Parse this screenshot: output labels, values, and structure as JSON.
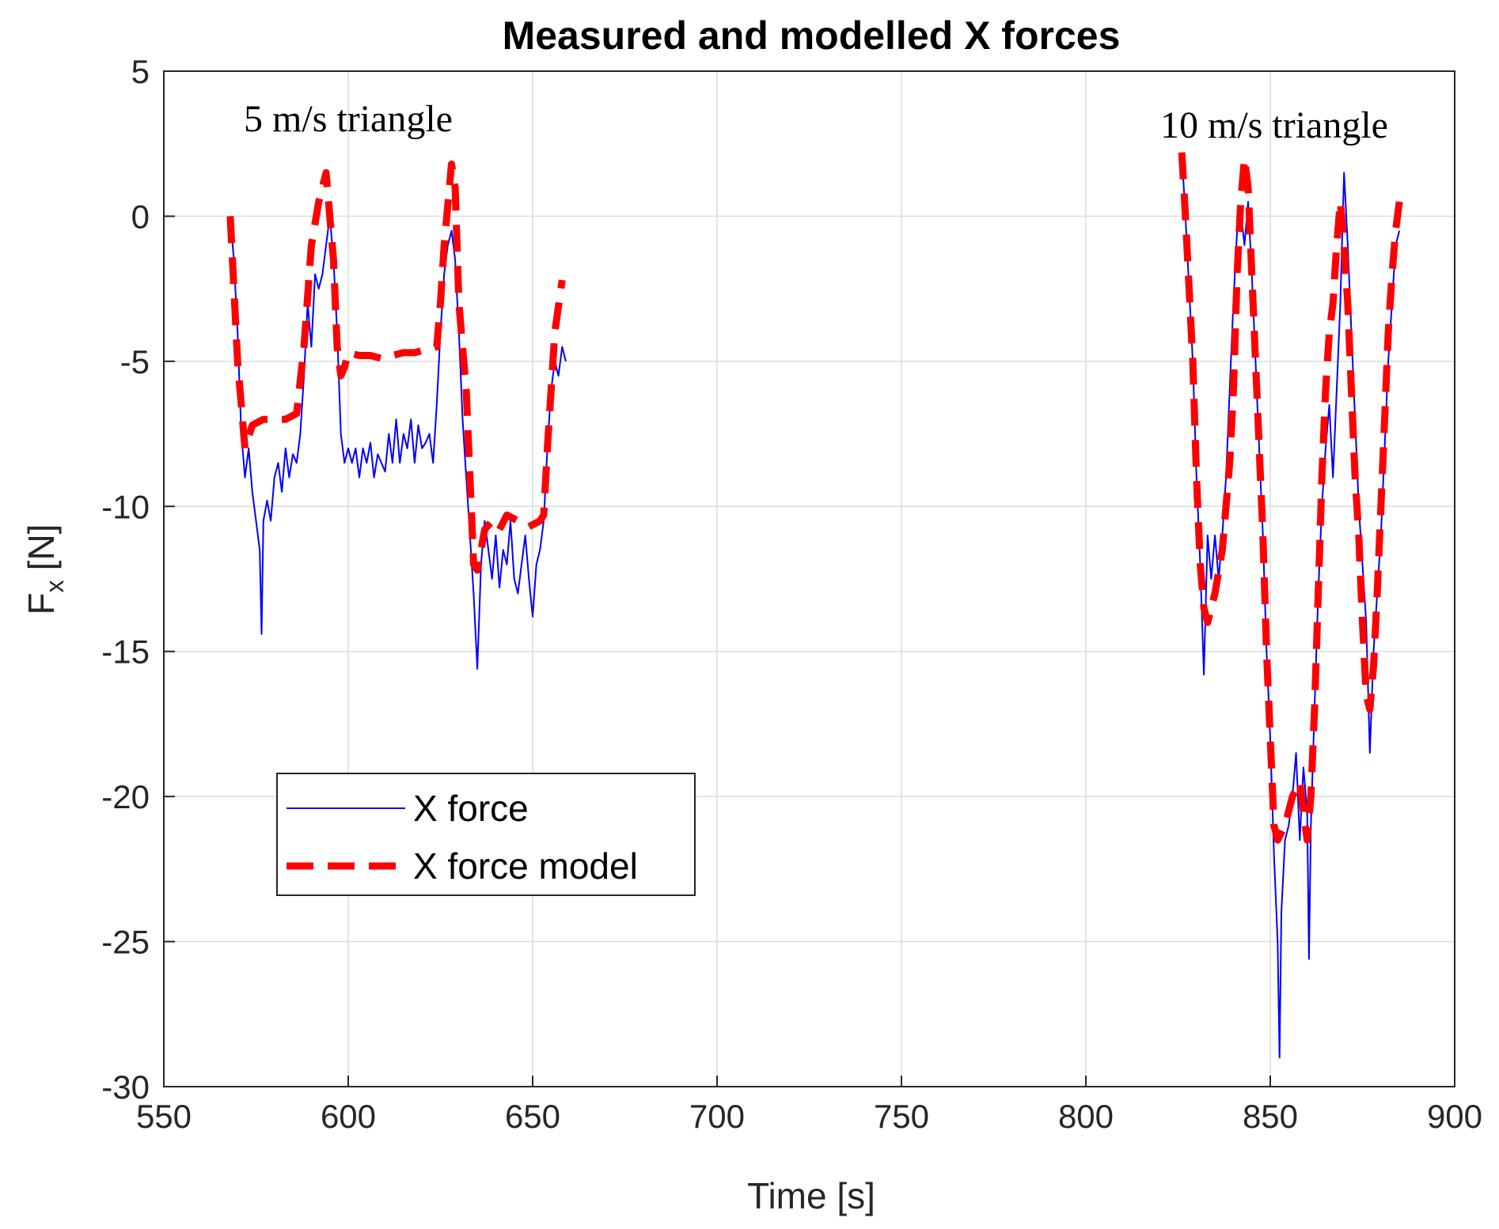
{
  "chart_data": {
    "type": "line",
    "title": "Measured and modelled X forces",
    "xlabel": "Time [s]",
    "ylabel_main": "F",
    "ylabel_sub": "x",
    "ylabel_unit": "[N]",
    "xlim": [
      550,
      900
    ],
    "ylim": [
      -30,
      5
    ],
    "xticks": [
      550,
      600,
      650,
      700,
      750,
      800,
      850,
      900
    ],
    "yticks": [
      -30,
      -25,
      -20,
      -15,
      -10,
      -5,
      0,
      5
    ],
    "grid": true,
    "legend_position": "lower-left",
    "annotations": [
      "5 m/s triangle",
      "10 m/s triangle"
    ],
    "series": [
      {
        "name": "X force",
        "color": "#0000ff",
        "style": "solid",
        "segments": [
          [
            [
              568,
              0
            ],
            [
              569,
              -1.5
            ],
            [
              570,
              -4
            ],
            [
              571,
              -7.5
            ],
            [
              572,
              -9
            ],
            [
              573,
              -8
            ],
            [
              574,
              -9.5
            ],
            [
              575,
              -10.5
            ],
            [
              576,
              -11.5
            ],
            [
              576.5,
              -14.4
            ],
            [
              577,
              -10.5
            ],
            [
              578,
              -9.8
            ],
            [
              579,
              -10.5
            ],
            [
              580,
              -9
            ],
            [
              581,
              -8.5
            ],
            [
              582,
              -9.5
            ],
            [
              583,
              -8
            ],
            [
              584,
              -9
            ],
            [
              585,
              -8.2
            ],
            [
              586,
              -8.5
            ],
            [
              587,
              -7.5
            ],
            [
              588,
              -5.5
            ],
            [
              589,
              -3
            ],
            [
              590,
              -4.5
            ],
            [
              591,
              -2
            ],
            [
              592,
              -2.5
            ],
            [
              593,
              -2
            ],
            [
              594,
              -1
            ],
            [
              595,
              0
            ],
            [
              596,
              -1.5
            ],
            [
              597,
              -4
            ],
            [
              598,
              -7.5
            ],
            [
              599,
              -8.5
            ],
            [
              600,
              -8
            ],
            [
              601,
              -8.5
            ],
            [
              602,
              -8
            ],
            [
              603,
              -9
            ],
            [
              604,
              -8
            ],
            [
              605,
              -8.5
            ],
            [
              606,
              -7.8
            ],
            [
              607,
              -9
            ],
            [
              608,
              -8.2
            ],
            [
              609,
              -8.5
            ],
            [
              610,
              -8.8
            ],
            [
              611,
              -7.5
            ],
            [
              612,
              -8.5
            ],
            [
              613,
              -7
            ],
            [
              614,
              -8.5
            ],
            [
              615,
              -7.5
            ],
            [
              616,
              -8
            ],
            [
              617,
              -7
            ],
            [
              618,
              -8.5
            ],
            [
              619,
              -7.2
            ],
            [
              620,
              -8
            ],
            [
              621,
              -7.8
            ],
            [
              622,
              -7.5
            ],
            [
              623,
              -8.5
            ],
            [
              624,
              -6.5
            ],
            [
              625,
              -4
            ],
            [
              626,
              -2
            ],
            [
              627,
              -1
            ],
            [
              628,
              -0.5
            ],
            [
              629,
              -1.5
            ],
            [
              630,
              -4
            ],
            [
              631,
              -7
            ],
            [
              632,
              -9
            ],
            [
              633,
              -11
            ],
            [
              634,
              -13
            ],
            [
              635,
              -15.6
            ],
            [
              636,
              -12
            ],
            [
              637,
              -10.5
            ],
            [
              638,
              -11.5
            ],
            [
              639,
              -12.5
            ],
            [
              640,
              -11
            ],
            [
              641,
              -12.8
            ],
            [
              642,
              -11.5
            ],
            [
              643,
              -12
            ],
            [
              644,
              -10.5
            ],
            [
              645,
              -12.5
            ],
            [
              646,
              -13
            ],
            [
              647,
              -12
            ],
            [
              648,
              -11
            ],
            [
              649,
              -12.5
            ],
            [
              650,
              -13.8
            ],
            [
              651,
              -12
            ],
            [
              652,
              -11.5
            ],
            [
              653,
              -10.5
            ],
            [
              654,
              -8
            ],
            [
              655,
              -6
            ],
            [
              656,
              -5
            ],
            [
              657,
              -5.5
            ],
            [
              658,
              -4.5
            ],
            [
              659,
              -5
            ]
          ],
          [
            [
              826,
              2.2
            ],
            [
              827,
              0
            ],
            [
              828,
              -2.5
            ],
            [
              829,
              -5
            ],
            [
              830,
              -9
            ],
            [
              831,
              -12
            ],
            [
              832,
              -15.8
            ],
            [
              833,
              -11
            ],
            [
              834,
              -12.5
            ],
            [
              835,
              -11
            ],
            [
              836,
              -12.5
            ],
            [
              837,
              -11
            ],
            [
              838,
              -9
            ],
            [
              839,
              -6
            ],
            [
              840,
              -3
            ],
            [
              841,
              -0.5
            ],
            [
              842,
              0.2
            ],
            [
              843,
              -1
            ],
            [
              844,
              0.5
            ],
            [
              845,
              -2
            ],
            [
              846,
              -5
            ],
            [
              847,
              -8
            ],
            [
              848,
              -11
            ],
            [
              849,
              -15
            ],
            [
              850,
              -18
            ],
            [
              851,
              -22
            ],
            [
              852,
              -25
            ],
            [
              852.5,
              -29
            ],
            [
              853,
              -24
            ],
            [
              854,
              -21.5
            ],
            [
              855,
              -21
            ],
            [
              856,
              -20
            ],
            [
              857,
              -18.5
            ],
            [
              858,
              -21.5
            ],
            [
              859,
              -19
            ],
            [
              860,
              -20.5
            ],
            [
              860.5,
              -25.6
            ],
            [
              861,
              -21
            ],
            [
              862,
              -17
            ],
            [
              863,
              -13
            ],
            [
              864,
              -10
            ],
            [
              865,
              -8
            ],
            [
              866,
              -6.5
            ],
            [
              867,
              -9
            ],
            [
              868,
              -6
            ],
            [
              869,
              -3
            ],
            [
              870,
              1.5
            ],
            [
              871,
              -1
            ],
            [
              872,
              -4
            ],
            [
              873,
              -7
            ],
            [
              874,
              -10
            ],
            [
              875,
              -12
            ],
            [
              876,
              -14
            ],
            [
              877,
              -18.5
            ],
            [
              878,
              -15
            ],
            [
              879,
              -13
            ],
            [
              880,
              -11
            ],
            [
              881,
              -8
            ],
            [
              882,
              -5
            ],
            [
              883,
              -3
            ],
            [
              884,
              -1
            ],
            [
              885,
              -0.5
            ]
          ]
        ]
      },
      {
        "name": "X force model",
        "color": "#ff0000",
        "style": "dashed",
        "segments": [
          [
            [
              568,
              0
            ],
            [
              570,
              -5
            ],
            [
              572,
              -8
            ],
            [
              574,
              -7.2
            ],
            [
              577,
              -7
            ],
            [
              580,
              -7
            ],
            [
              583,
              -7
            ],
            [
              586,
              -6.8
            ],
            [
              588,
              -4.5
            ],
            [
              590,
              -1
            ],
            [
              592,
              0.5
            ],
            [
              594,
              1.5
            ],
            [
              596,
              -1.5
            ],
            [
              597,
              -4.5
            ],
            [
              598,
              -5.5
            ],
            [
              599,
              -5.2
            ],
            [
              600,
              -4.7
            ],
            [
              603,
              -4.8
            ],
            [
              606,
              -4.8
            ],
            [
              609,
              -4.9
            ],
            [
              612,
              -4.8
            ],
            [
              615,
              -4.7
            ],
            [
              618,
              -4.7
            ],
            [
              621,
              -4.6
            ],
            [
              624,
              -4.5
            ],
            [
              625,
              -3
            ],
            [
              626,
              -1
            ],
            [
              628,
              1.8
            ],
            [
              629,
              1
            ],
            [
              630,
              -3
            ],
            [
              632,
              -6
            ],
            [
              633,
              -9
            ],
            [
              634,
              -12
            ],
            [
              635,
              -12.2
            ],
            [
              637,
              -10.8
            ],
            [
              639,
              -10.5
            ],
            [
              641,
              -10.8
            ],
            [
              643,
              -10.3
            ],
            [
              646,
              -10.5
            ],
            [
              649,
              -10.7
            ],
            [
              652,
              -10.5
            ],
            [
              653,
              -10.3
            ],
            [
              654,
              -8
            ],
            [
              656,
              -4
            ],
            [
              658,
              -2.2
            ]
          ],
          [
            [
              826,
              2.2
            ],
            [
              827,
              0
            ],
            [
              829,
              -5
            ],
            [
              830,
              -9
            ],
            [
              831,
              -12
            ],
            [
              832,
              -13.5
            ],
            [
              833,
              -14
            ],
            [
              835,
              -13
            ],
            [
              837,
              -11.5
            ],
            [
              839,
              -8.5
            ],
            [
              840,
              -6
            ],
            [
              841,
              -2
            ],
            [
              842,
              0.5
            ],
            [
              843,
              2
            ],
            [
              844,
              1
            ],
            [
              845,
              -2
            ],
            [
              846,
              -5
            ],
            [
              848,
              -11
            ],
            [
              849,
              -15
            ],
            [
              850,
              -18
            ],
            [
              851,
              -21
            ],
            [
              852,
              -21.5
            ],
            [
              854,
              -21
            ],
            [
              856,
              -20
            ],
            [
              858,
              -19.5
            ],
            [
              860,
              -21.5
            ],
            [
              861,
              -20
            ],
            [
              862,
              -17
            ],
            [
              863,
              -13
            ],
            [
              864,
              -9
            ],
            [
              865,
              -6
            ],
            [
              866,
              -4
            ],
            [
              867,
              -3
            ],
            [
              868,
              -1
            ],
            [
              869,
              0.5
            ],
            [
              870,
              -1
            ],
            [
              871,
              -3
            ],
            [
              872,
              -6
            ],
            [
              873,
              -9
            ],
            [
              874,
              -11
            ],
            [
              875,
              -14
            ],
            [
              876,
              -16.5
            ],
            [
              877,
              -17
            ],
            [
              878,
              -15.5
            ],
            [
              879,
              -13
            ],
            [
              880,
              -10
            ],
            [
              881,
              -7
            ],
            [
              882,
              -4
            ],
            [
              883,
              -2
            ],
            [
              884,
              -0.5
            ],
            [
              885,
              0.5
            ]
          ]
        ]
      }
    ]
  }
}
